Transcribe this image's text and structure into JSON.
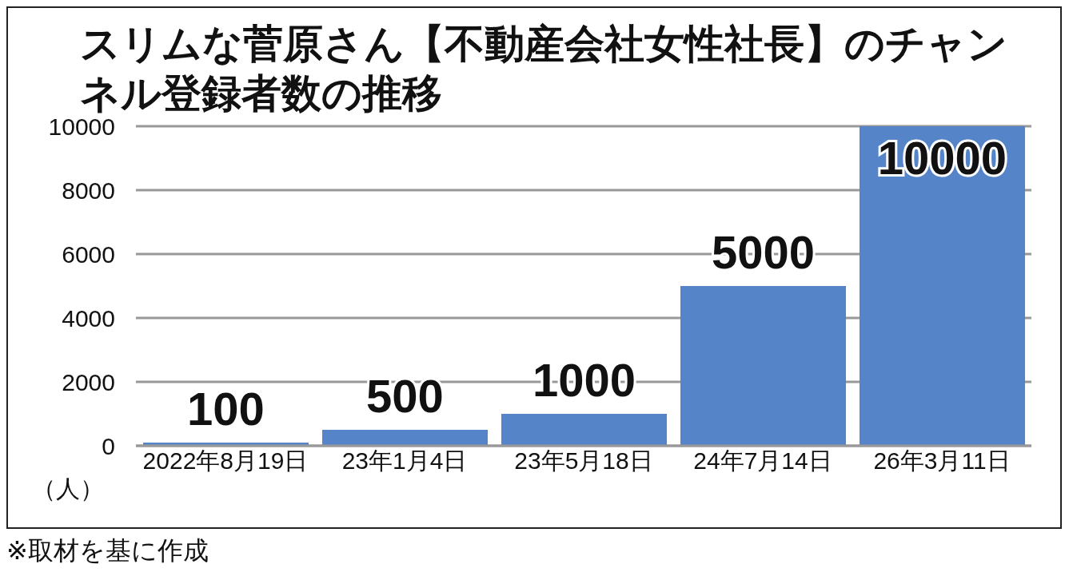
{
  "chart_data": {
    "type": "bar",
    "title": "スリムな菅原さん【不動産会社女性社長】のチャンネル登録者数の推移",
    "categories": [
      "2022年8月19日",
      "23年1月4日",
      "23年5月18日",
      "24年7月14日",
      "26年3月11日"
    ],
    "values": [
      100,
      500,
      1000,
      5000,
      10000
    ],
    "color": "#5585c8",
    "ylabel": "（人）",
    "ylim": [
      0,
      10000
    ],
    "yticks": [
      0,
      2000,
      4000,
      6000,
      8000,
      10000
    ],
    "grid": "y",
    "data_labels": true,
    "annotations": [
      "※取材を基に作成"
    ]
  }
}
